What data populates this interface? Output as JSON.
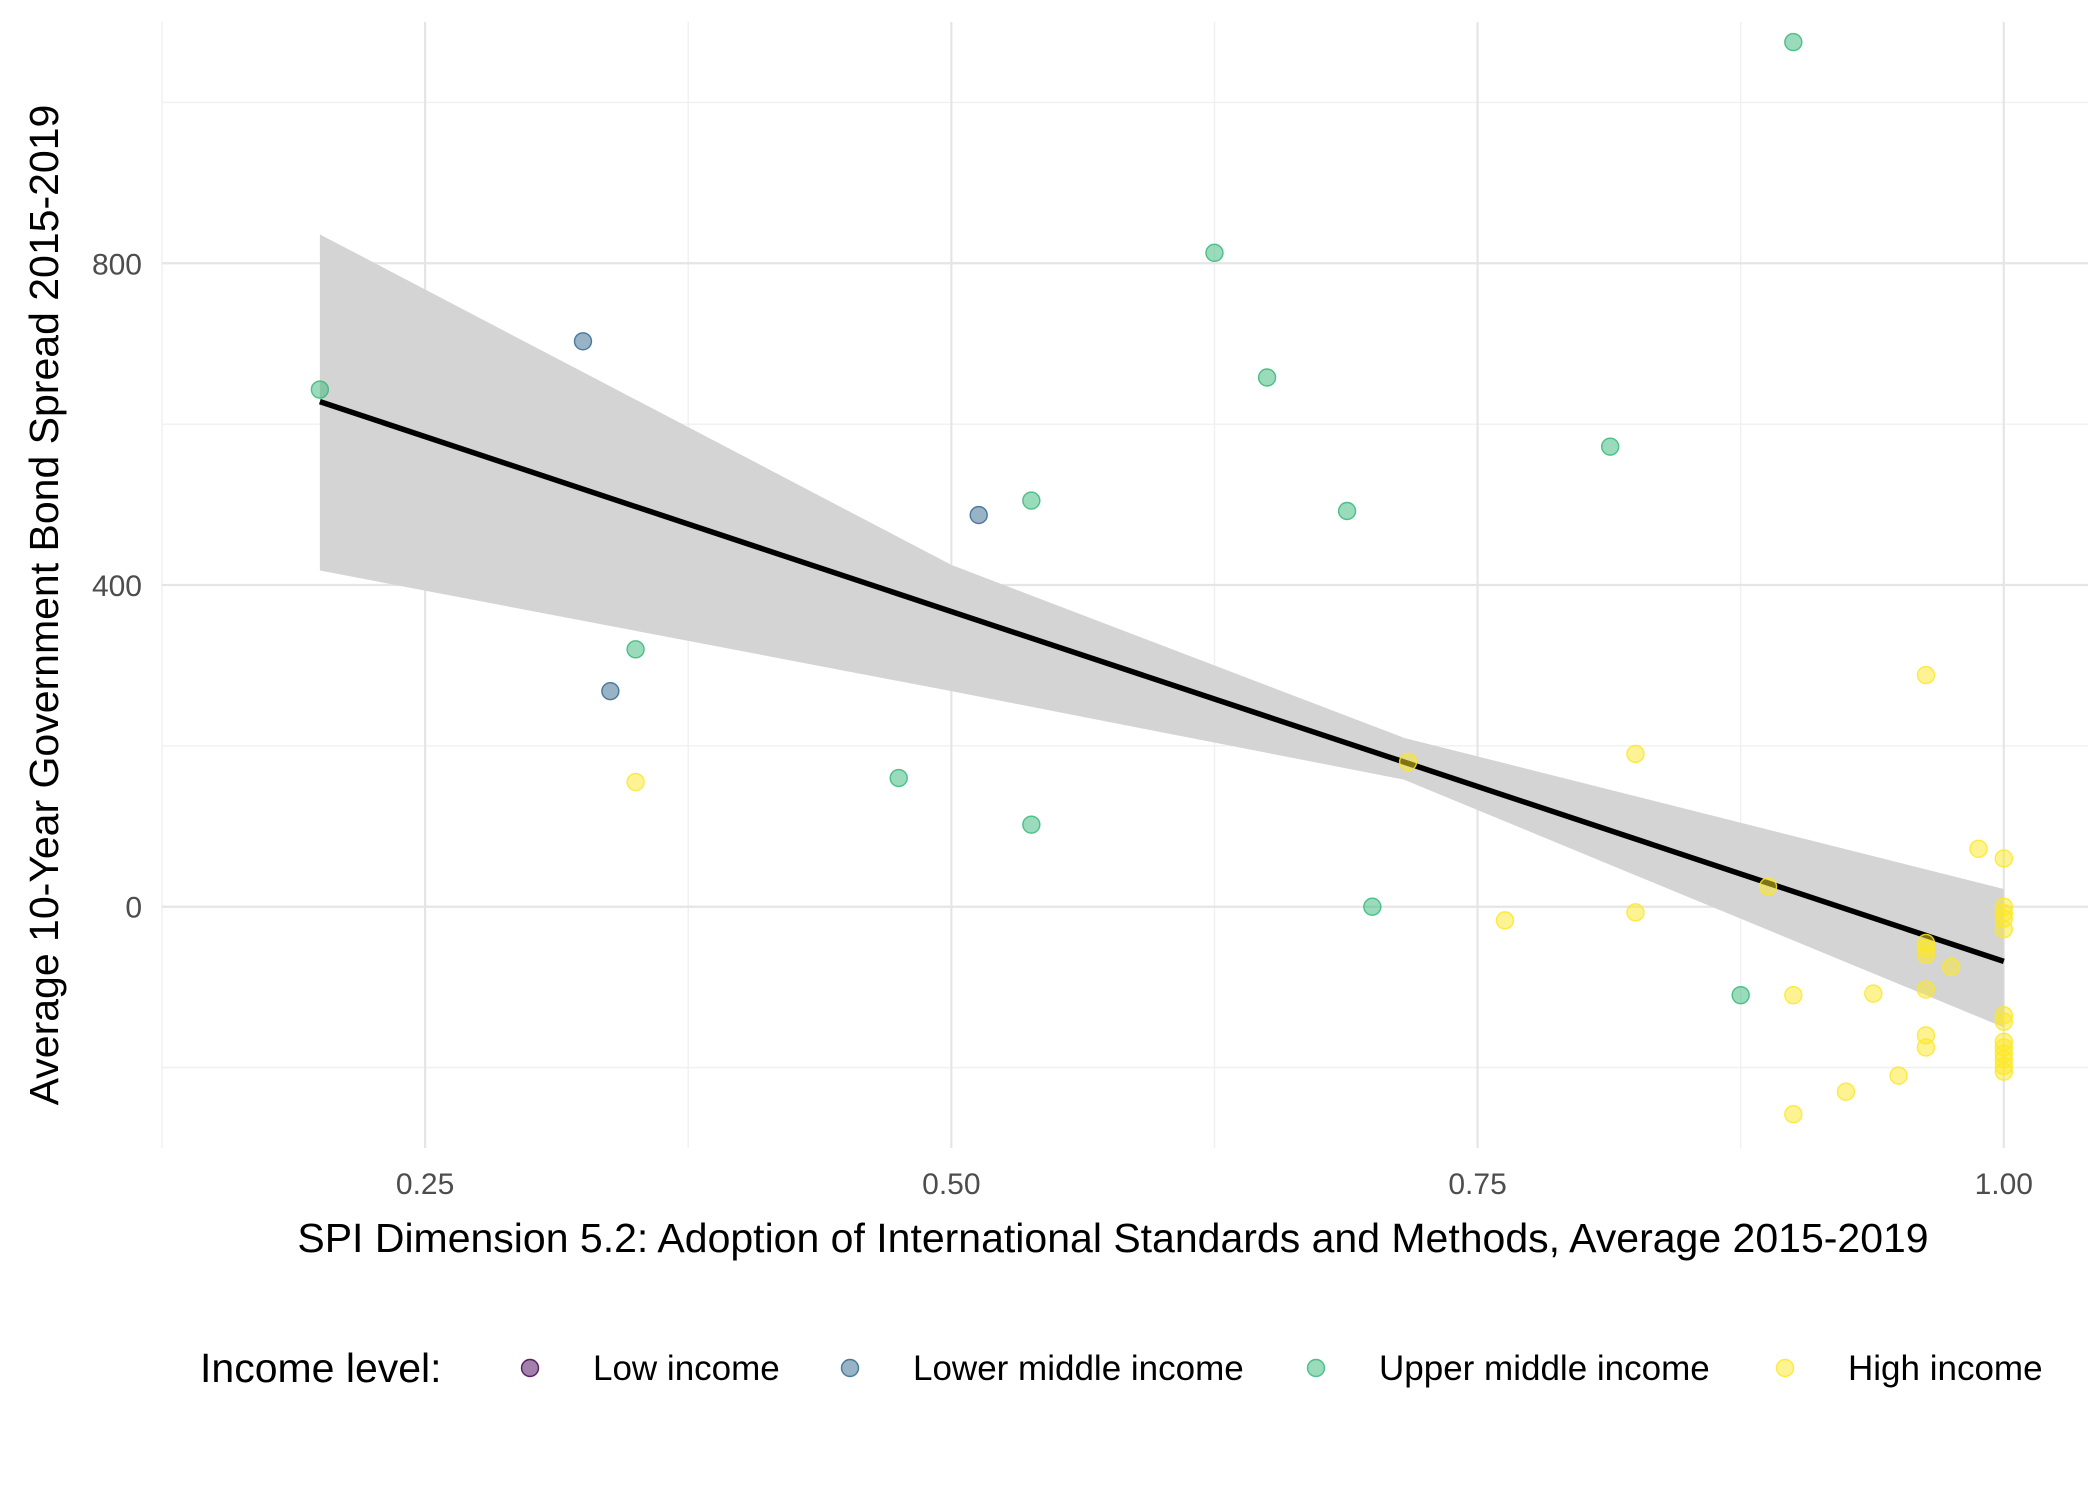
{
  "chart_data": {
    "type": "scatter",
    "xlabel": "SPI Dimension 5.2: Adoption of International Standards and Methods, Average 2015-2019",
    "ylabel": "Average 10-Year Government Bond Spread 2015-2019",
    "xlim": [
      0.125,
      1.04
    ],
    "ylim": [
      -300,
      1100
    ],
    "x_ticks": [
      0.25,
      0.5,
      0.75,
      1.0
    ],
    "x_tick_labels": [
      "0.25",
      "0.50",
      "0.75",
      "1.00"
    ],
    "y_ticks": [
      0,
      400,
      800
    ],
    "y_tick_labels": [
      "0",
      "400",
      "800"
    ],
    "grid": true,
    "legend": {
      "title": "Income level:",
      "position": "bottom",
      "entries": [
        {
          "label": "Low income",
          "color": "#440154"
        },
        {
          "label": "Lower middle income",
          "color": "#31688e"
        },
        {
          "label": "Upper middle income",
          "color": "#35b779"
        },
        {
          "label": "High income",
          "color": "#fde725"
        }
      ]
    },
    "series": [
      {
        "name": "Low income",
        "color": "#440154",
        "points": []
      },
      {
        "name": "Lower middle income",
        "color": "#31688e",
        "points": [
          [
            0.325,
            703
          ],
          [
            0.338,
            268
          ],
          [
            0.513,
            487
          ]
        ]
      },
      {
        "name": "Upper middle income",
        "color": "#35b779",
        "points": [
          [
            0.2,
            643
          ],
          [
            0.35,
            320
          ],
          [
            0.475,
            160
          ],
          [
            0.538,
            505
          ],
          [
            0.538,
            102
          ],
          [
            0.625,
            813
          ],
          [
            0.65,
            658
          ],
          [
            0.688,
            492
          ],
          [
            0.7,
            0
          ],
          [
            0.813,
            572
          ],
          [
            0.875,
            -110
          ],
          [
            0.9,
            1075
          ]
        ]
      },
      {
        "name": "High income",
        "color": "#fde725",
        "points": [
          [
            0.35,
            155
          ],
          [
            0.717,
            180
          ],
          [
            0.763,
            -17
          ],
          [
            0.825,
            190
          ],
          [
            0.825,
            -7
          ],
          [
            0.888,
            25
          ],
          [
            0.9,
            -110
          ],
          [
            0.9,
            -258
          ],
          [
            0.925,
            -230
          ],
          [
            0.938,
            -108
          ],
          [
            0.95,
            -210
          ],
          [
            0.963,
            288
          ],
          [
            0.963,
            -45
          ],
          [
            0.963,
            -52
          ],
          [
            0.963,
            -60
          ],
          [
            0.963,
            -103
          ],
          [
            0.963,
            -160
          ],
          [
            0.963,
            -175
          ],
          [
            0.975,
            -75
          ],
          [
            0.988,
            72
          ],
          [
            1.0,
            60
          ],
          [
            1.0,
            0
          ],
          [
            1.0,
            -8
          ],
          [
            1.0,
            -15
          ],
          [
            1.0,
            -28
          ],
          [
            1.0,
            -135
          ],
          [
            1.0,
            -143
          ],
          [
            1.0,
            -168
          ],
          [
            1.0,
            -175
          ],
          [
            1.0,
            -183
          ],
          [
            1.0,
            -190
          ],
          [
            1.0,
            -198
          ],
          [
            1.0,
            -205
          ]
        ]
      }
    ],
    "fit": {
      "method": "lm",
      "color": "#000000",
      "x": [
        0.2,
        1.0
      ],
      "y": [
        628,
        -68
      ],
      "ci_color": "#d4d4d4",
      "ci_lower": [
        [
          0.2,
          418
        ],
        [
          0.5,
          268
        ],
        [
          0.715,
          158
        ],
        [
          1.0,
          -150
        ]
      ],
      "ci_upper": [
        [
          0.2,
          836
        ],
        [
          0.5,
          425
        ],
        [
          0.715,
          210
        ],
        [
          1.0,
          22
        ]
      ]
    }
  }
}
